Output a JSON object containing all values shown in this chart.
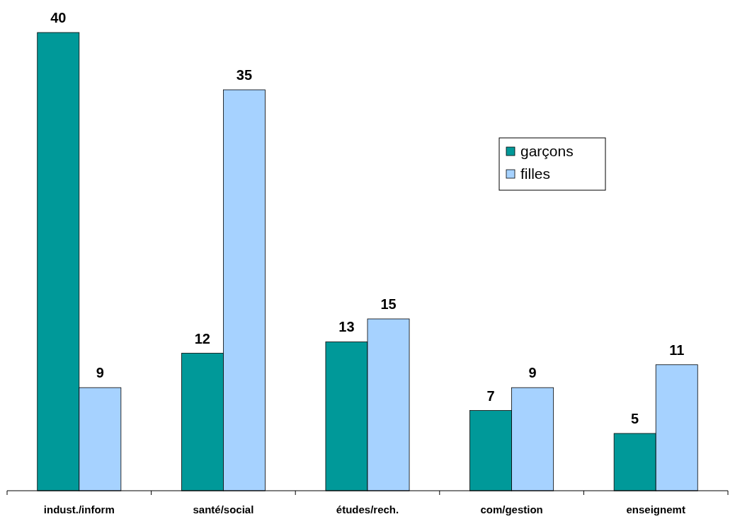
{
  "chart_data": {
    "type": "bar",
    "categories": [
      "indust./inform",
      "santé/social",
      "études/rech.",
      "com/gestion",
      "enseignemt"
    ],
    "series": [
      {
        "name": "garçons",
        "color": "#009999",
        "values": [
          40,
          12,
          13,
          7,
          5
        ]
      },
      {
        "name": "filles",
        "color": "#a6d2ff",
        "values": [
          9,
          35,
          15,
          9,
          11
        ]
      }
    ],
    "data_labels": true,
    "legend": "right"
  }
}
